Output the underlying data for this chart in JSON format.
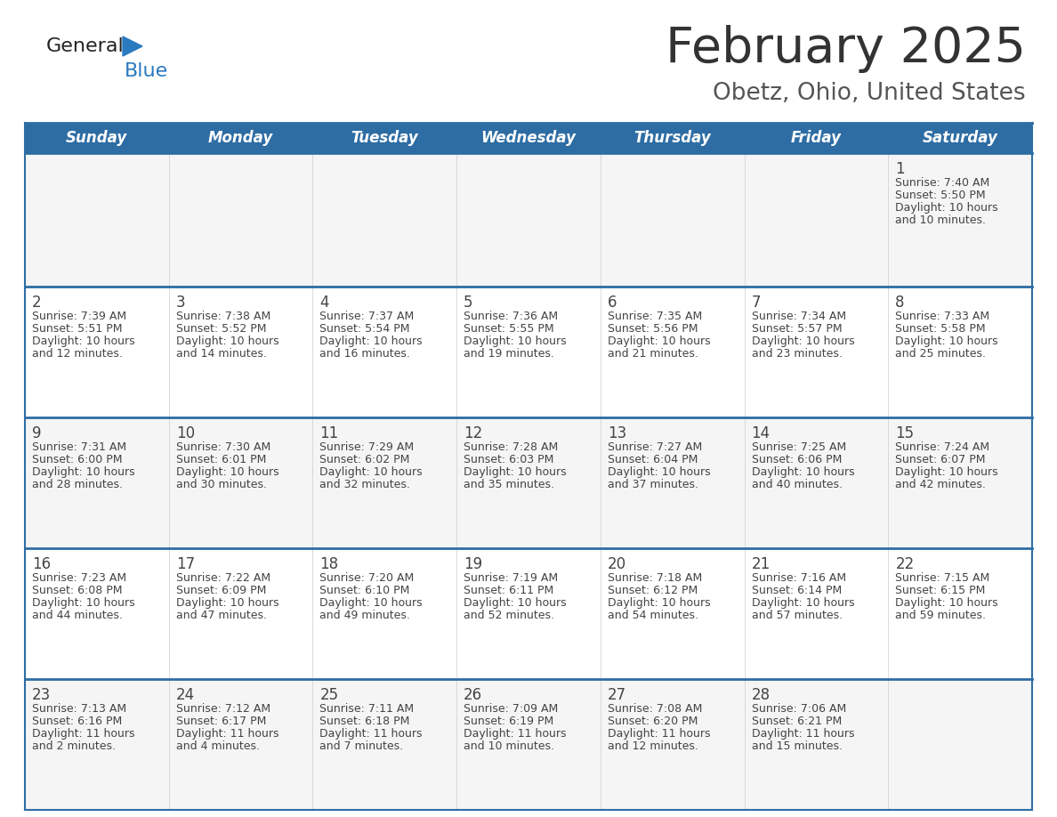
{
  "title": "February 2025",
  "subtitle": "Obetz, Ohio, United States",
  "days_of_week": [
    "Sunday",
    "Monday",
    "Tuesday",
    "Wednesday",
    "Thursday",
    "Friday",
    "Saturday"
  ],
  "header_bg": "#2e6da4",
  "header_text": "#ffffff",
  "cell_bg_odd": "#f5f5f5",
  "cell_bg_even": "#ffffff",
  "divider_color": "#2e6da4",
  "col_line_color": "#cccccc",
  "text_color": "#444444",
  "title_color": "#333333",
  "subtitle_color": "#555555",
  "logo_general_color": "#222222",
  "logo_blue_color": "#2a7abf",
  "logo_triangle_color": "#2a7abf",
  "calendar_data": [
    [
      {
        "day": null,
        "sunrise": null,
        "sunset": null,
        "daylight": null
      },
      {
        "day": null,
        "sunrise": null,
        "sunset": null,
        "daylight": null
      },
      {
        "day": null,
        "sunrise": null,
        "sunset": null,
        "daylight": null
      },
      {
        "day": null,
        "sunrise": null,
        "sunset": null,
        "daylight": null
      },
      {
        "day": null,
        "sunrise": null,
        "sunset": null,
        "daylight": null
      },
      {
        "day": null,
        "sunrise": null,
        "sunset": null,
        "daylight": null
      },
      {
        "day": 1,
        "sunrise": "7:40 AM",
        "sunset": "5:50 PM",
        "daylight": "10 hours and 10 minutes"
      }
    ],
    [
      {
        "day": 2,
        "sunrise": "7:39 AM",
        "sunset": "5:51 PM",
        "daylight": "10 hours and 12 minutes"
      },
      {
        "day": 3,
        "sunrise": "7:38 AM",
        "sunset": "5:52 PM",
        "daylight": "10 hours and 14 minutes"
      },
      {
        "day": 4,
        "sunrise": "7:37 AM",
        "sunset": "5:54 PM",
        "daylight": "10 hours and 16 minutes"
      },
      {
        "day": 5,
        "sunrise": "7:36 AM",
        "sunset": "5:55 PM",
        "daylight": "10 hours and 19 minutes"
      },
      {
        "day": 6,
        "sunrise": "7:35 AM",
        "sunset": "5:56 PM",
        "daylight": "10 hours and 21 minutes"
      },
      {
        "day": 7,
        "sunrise": "7:34 AM",
        "sunset": "5:57 PM",
        "daylight": "10 hours and 23 minutes"
      },
      {
        "day": 8,
        "sunrise": "7:33 AM",
        "sunset": "5:58 PM",
        "daylight": "10 hours and 25 minutes"
      }
    ],
    [
      {
        "day": 9,
        "sunrise": "7:31 AM",
        "sunset": "6:00 PM",
        "daylight": "10 hours and 28 minutes"
      },
      {
        "day": 10,
        "sunrise": "7:30 AM",
        "sunset": "6:01 PM",
        "daylight": "10 hours and 30 minutes"
      },
      {
        "day": 11,
        "sunrise": "7:29 AM",
        "sunset": "6:02 PM",
        "daylight": "10 hours and 32 minutes"
      },
      {
        "day": 12,
        "sunrise": "7:28 AM",
        "sunset": "6:03 PM",
        "daylight": "10 hours and 35 minutes"
      },
      {
        "day": 13,
        "sunrise": "7:27 AM",
        "sunset": "6:04 PM",
        "daylight": "10 hours and 37 minutes"
      },
      {
        "day": 14,
        "sunrise": "7:25 AM",
        "sunset": "6:06 PM",
        "daylight": "10 hours and 40 minutes"
      },
      {
        "day": 15,
        "sunrise": "7:24 AM",
        "sunset": "6:07 PM",
        "daylight": "10 hours and 42 minutes"
      }
    ],
    [
      {
        "day": 16,
        "sunrise": "7:23 AM",
        "sunset": "6:08 PM",
        "daylight": "10 hours and 44 minutes"
      },
      {
        "day": 17,
        "sunrise": "7:22 AM",
        "sunset": "6:09 PM",
        "daylight": "10 hours and 47 minutes"
      },
      {
        "day": 18,
        "sunrise": "7:20 AM",
        "sunset": "6:10 PM",
        "daylight": "10 hours and 49 minutes"
      },
      {
        "day": 19,
        "sunrise": "7:19 AM",
        "sunset": "6:11 PM",
        "daylight": "10 hours and 52 minutes"
      },
      {
        "day": 20,
        "sunrise": "7:18 AM",
        "sunset": "6:12 PM",
        "daylight": "10 hours and 54 minutes"
      },
      {
        "day": 21,
        "sunrise": "7:16 AM",
        "sunset": "6:14 PM",
        "daylight": "10 hours and 57 minutes"
      },
      {
        "day": 22,
        "sunrise": "7:15 AM",
        "sunset": "6:15 PM",
        "daylight": "10 hours and 59 minutes"
      }
    ],
    [
      {
        "day": 23,
        "sunrise": "7:13 AM",
        "sunset": "6:16 PM",
        "daylight": "11 hours and 2 minutes"
      },
      {
        "day": 24,
        "sunrise": "7:12 AM",
        "sunset": "6:17 PM",
        "daylight": "11 hours and 4 minutes"
      },
      {
        "day": 25,
        "sunrise": "7:11 AM",
        "sunset": "6:18 PM",
        "daylight": "11 hours and 7 minutes"
      },
      {
        "day": 26,
        "sunrise": "7:09 AM",
        "sunset": "6:19 PM",
        "daylight": "11 hours and 10 minutes"
      },
      {
        "day": 27,
        "sunrise": "7:08 AM",
        "sunset": "6:20 PM",
        "daylight": "11 hours and 12 minutes"
      },
      {
        "day": 28,
        "sunrise": "7:06 AM",
        "sunset": "6:21 PM",
        "daylight": "11 hours and 15 minutes"
      },
      {
        "day": null,
        "sunrise": null,
        "sunset": null,
        "daylight": null
      }
    ]
  ]
}
